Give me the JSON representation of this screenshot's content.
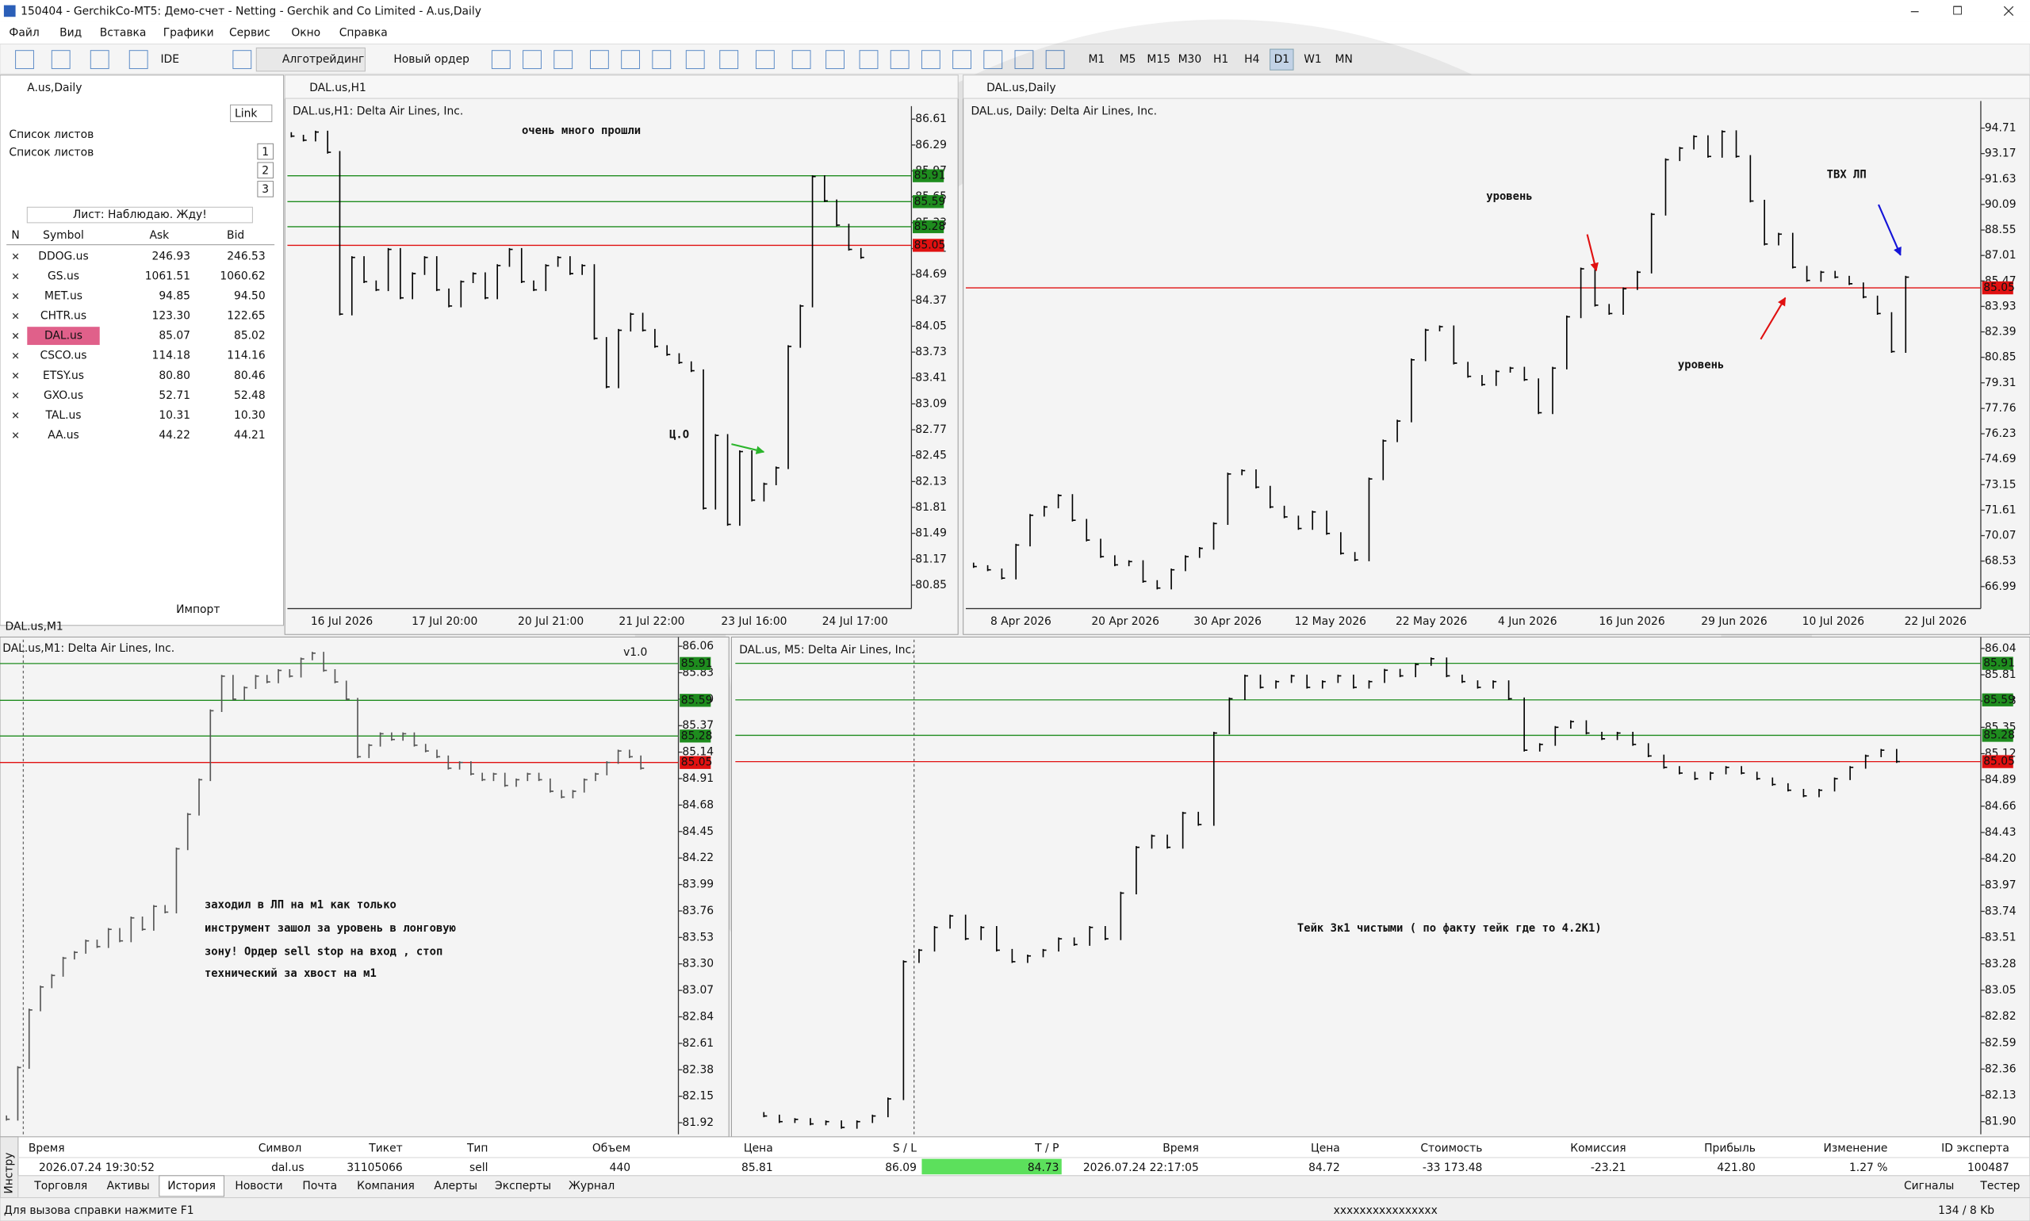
{
  "window": {
    "title": "150404 - GerchikCo-MT5: Демо-счет - Netting - Gerchik and Co Limited - A.us,Daily",
    "menu": [
      "Файл",
      "Вид",
      "Вставка",
      "Графики",
      "Сервис",
      "Окно",
      "Справка"
    ]
  },
  "toolbar": {
    "items": [
      "IDE",
      "Алготрейдинг",
      "Новый ордер"
    ],
    "timeframes": [
      "M1",
      "M5",
      "M15",
      "M30",
      "H1",
      "H4",
      "D1",
      "W1",
      "MN"
    ],
    "active_timeframe": 6
  },
  "watchlist": {
    "window_title": "A.us,Daily",
    "link": "Link",
    "heading": "Список листов",
    "subheading": "Список листов",
    "tabs": [
      "1",
      "2",
      "3"
    ],
    "list_name": "Лист: Наблюдаю. Жду!",
    "columns": [
      "N",
      "Symbol",
      "Ask",
      "Bid"
    ],
    "selected": 4,
    "import": "Импорт",
    "rows": [
      {
        "symbol": "DDOG.us",
        "ask": "246.93",
        "bid": "246.53",
        "stale": false
      },
      {
        "symbol": "GS.us",
        "ask": "1061.51",
        "bid": "1060.62",
        "stale": true
      },
      {
        "symbol": "MET.us",
        "ask": "94.85",
        "bid": "94.50",
        "stale": false
      },
      {
        "symbol": "CHTR.us",
        "ask": "123.30",
        "bid": "122.65",
        "stale": true
      },
      {
        "symbol": "DAL.us",
        "ask": "85.07",
        "bid": "85.02",
        "stale": false
      },
      {
        "symbol": "CSCO.us",
        "ask": "114.18",
        "bid": "114.16",
        "stale": true
      },
      {
        "symbol": "ETSY.us",
        "ask": "80.80",
        "bid": "80.46",
        "stale": false
      },
      {
        "symbol": "GXO.us",
        "ask": "52.71",
        "bid": "52.48",
        "stale": true
      },
      {
        "symbol": "TAL.us",
        "ask": "10.31",
        "bid": "10.30",
        "stale": false
      },
      {
        "symbol": "AA.us",
        "ask": "44.22",
        "bid": "44.21",
        "stale": true
      }
    ]
  },
  "chart_data": [
    {
      "type": "ohlc_close",
      "window_title": "DAL.us,H1",
      "header": "DAL.us,H1:  Delta Air Lines, Inc.",
      "color": "#000000",
      "ylim": [
        80.56,
        86.77
      ],
      "yticks": [
        86.61,
        86.29,
        85.97,
        85.65,
        85.33,
        85.01,
        84.69,
        84.37,
        84.05,
        83.73,
        83.41,
        83.09,
        82.77,
        82.45,
        82.13,
        81.81,
        81.49,
        81.17,
        80.85
      ],
      "x_labels": [
        "16 Jul 2026",
        "17 Jul 20:00",
        "20 Jul 21:00",
        "21 Jul 22:00",
        "23 Jul 16:00",
        "24 Jul 17:00"
      ],
      "levels": [
        {
          "value": 85.91,
          "color": "#1e8c1e"
        },
        {
          "value": 85.59,
          "color": "#1e8c1e"
        },
        {
          "value": 85.28,
          "color": "#1e8c1e"
        },
        {
          "value": 85.05,
          "color": "#e01010"
        }
      ],
      "annotations": [
        {
          "text": "очень много прошли",
          "color": "#000000"
        },
        {
          "text": "Ц.О",
          "color": "#1414d8"
        }
      ],
      "values": [
        86.4,
        86.35,
        86.45,
        86.2,
        84.2,
        84.9,
        84.6,
        84.5,
        85.0,
        84.4,
        84.7,
        84.9,
        84.5,
        84.3,
        84.6,
        84.7,
        84.4,
        84.8,
        85.0,
        84.6,
        84.5,
        84.8,
        84.9,
        84.7,
        84.8,
        83.9,
        83.3,
        84.0,
        84.2,
        84.0,
        83.8,
        83.7,
        83.6,
        83.5,
        81.8,
        82.7,
        81.6,
        82.5,
        81.9,
        82.1,
        82.3,
        83.8,
        84.3,
        85.9,
        85.6,
        85.3,
        85.0,
        84.9
      ]
    },
    {
      "type": "ohlc_close",
      "window_title": "DAL.us,Daily",
      "header": "DAL.us, Daily:  Delta Air Lines, Inc.",
      "color": "#000000",
      "ylim": [
        65.66,
        96.35
      ],
      "yticks": [
        94.71,
        93.17,
        91.63,
        90.09,
        88.55,
        87.01,
        85.47,
        83.93,
        82.39,
        80.85,
        79.31,
        77.76,
        76.23,
        74.69,
        73.15,
        71.61,
        70.07,
        68.53,
        66.99
      ],
      "x_labels": [
        "8 Apr 2026",
        "20 Apr 2026",
        "30 Apr 2026",
        "12 May 2026",
        "22 May 2026",
        "4 Jun 2026",
        "16 Jun 2026",
        "29 Jun 2026",
        "10 Jul 2026",
        "22 Jul 2026"
      ],
      "levels": [
        {
          "value": 85.05,
          "color": "#e01010"
        }
      ],
      "annotations": [
        {
          "text": "уровень",
          "color": "#000000"
        },
        {
          "text": "уровень",
          "color": "#000000"
        },
        {
          "text": "ТВХ ЛП",
          "color": "#000000"
        }
      ],
      "values": [
        68.2,
        68.0,
        67.5,
        69.5,
        71.3,
        71.8,
        72.5,
        71.0,
        69.8,
        68.8,
        68.3,
        68.5,
        67.3,
        66.9,
        68.0,
        68.8,
        69.3,
        70.8,
        73.8,
        74.0,
        73.0,
        71.8,
        71.2,
        70.5,
        71.5,
        70.2,
        69.0,
        68.6,
        73.5,
        75.8,
        77.0,
        80.7,
        82.5,
        82.7,
        80.5,
        79.7,
        79.2,
        80.0,
        80.2,
        79.5,
        77.5,
        80.2,
        83.3,
        86.2,
        84.0,
        83.5,
        85.0,
        86.0,
        89.5,
        92.8,
        93.5,
        94.2,
        93.0,
        94.5,
        93.0,
        90.3,
        87.7,
        88.3,
        86.3,
        85.5,
        86.0,
        85.7,
        85.3,
        84.5,
        83.5,
        81.2,
        85.7
      ]
    },
    {
      "type": "ohlc_close",
      "window_title": "DAL.us,M1",
      "header": "DAL.us,M1:  Delta Air Lines, Inc.",
      "badge": "v1.0",
      "color": "#555555",
      "ylim": [
        81.82,
        86.14
      ],
      "yticks": [
        86.06,
        85.83,
        {
          "value": 85.6,
          "label": "85.60"
        },
        85.37,
        85.14,
        84.91,
        84.68,
        84.45,
        84.22,
        83.99,
        83.76,
        83.53,
        {
          "value": 83.3,
          "label": "83.30"
        },
        83.07,
        82.84,
        82.61,
        82.38,
        82.15,
        81.92
      ],
      "levels": [
        {
          "value": 85.91,
          "color": "#1e8c1e"
        },
        {
          "value": 85.59,
          "color": "#1e8c1e"
        },
        {
          "value": 85.28,
          "color": "#1e8c1e"
        },
        {
          "value": 85.05,
          "color": "#e01010"
        }
      ],
      "annotations": [
        {
          "text": "заходил в ЛП на м1 как только",
          "color": "#1414d8"
        },
        {
          "text": "инструмент зашол за уровень в лонговую",
          "color": "#1414d8"
        },
        {
          "text": "зону! Ордер sell stop на вход , стоп",
          "color": "#1414d8"
        },
        {
          "text": "технический за хвост на м1",
          "color": "#1414d8"
        }
      ],
      "values": [
        81.95,
        82.4,
        82.9,
        83.1,
        83.2,
        83.35,
        83.4,
        83.5,
        83.45,
        83.6,
        83.5,
        83.7,
        83.6,
        83.8,
        83.75,
        84.3,
        84.6,
        84.9,
        85.5,
        85.8,
        85.6,
        85.7,
        85.8,
        85.75,
        85.85,
        85.8,
        85.95,
        86.0,
        85.85,
        85.75,
        85.6,
        85.1,
        85.2,
        85.3,
        85.25,
        85.3,
        85.2,
        85.15,
        85.1,
        85.0,
        85.05,
        84.95,
        84.9,
        84.95,
        84.85,
        84.9,
        84.95,
        84.9,
        84.8,
        84.75,
        84.8,
        84.9,
        84.95,
        85.05,
        85.15,
        85.1,
        85.0
      ]
    },
    {
      "type": "ohlc_close",
      "header": "DAL.us, M5:  Delta Air Lines, Inc.",
      "color": "#000000",
      "ylim": [
        81.79,
        86.14
      ],
      "yticks": [
        86.04,
        85.81,
        85.58,
        85.35,
        85.12,
        84.89,
        84.66,
        84.43,
        {
          "value": 84.2,
          "label": "84.20"
        },
        83.97,
        83.74,
        83.51,
        83.28,
        83.05,
        82.82,
        82.59,
        82.36,
        82.13,
        {
          "value": 81.9,
          "label": "81.90"
        }
      ],
      "levels": [
        {
          "value": 85.91,
          "color": "#1e8c1e"
        },
        {
          "value": 85.59,
          "color": "#1e8c1e"
        },
        {
          "value": 85.28,
          "color": "#1e8c1e"
        },
        {
          "value": 85.05,
          "color": "#e01010"
        }
      ],
      "annotations": [
        {
          "text": "Тейк 3к1 чистыми ( по факту тейк где то 4.2К1)",
          "color": "#1414d8"
        }
      ],
      "values": [
        81.95,
        81.9,
        81.92,
        81.88,
        81.9,
        81.85,
        81.9,
        81.95,
        82.1,
        83.3,
        83.4,
        83.6,
        83.7,
        83.5,
        83.6,
        83.4,
        83.3,
        83.35,
        83.4,
        83.5,
        83.45,
        83.6,
        83.5,
        83.9,
        84.3,
        84.4,
        84.3,
        84.6,
        84.5,
        85.3,
        85.6,
        85.8,
        85.7,
        85.75,
        85.8,
        85.7,
        85.75,
        85.8,
        85.7,
        85.75,
        85.85,
        85.8,
        85.9,
        85.95,
        85.8,
        85.75,
        85.7,
        85.75,
        85.6,
        85.15,
        85.2,
        85.35,
        85.4,
        85.3,
        85.25,
        85.3,
        85.2,
        85.1,
        85.0,
        84.95,
        84.9,
        84.95,
        85.0,
        84.95,
        84.9,
        84.85,
        84.8,
        84.75,
        84.8,
        84.9,
        85.0,
        85.1,
        85.15,
        85.05
      ]
    }
  ],
  "toolbox": {
    "side_label": "Инстру",
    "columns": [
      "Время",
      "Символ",
      "Тикет",
      "Тип",
      "Объем",
      "Цена",
      "S / L",
      "T / P",
      "Время",
      "Цена",
      "Стоимость",
      "Комиссия",
      "Прибыль",
      "Изменение",
      "ID эксперта"
    ],
    "row": [
      "2026.07.24 19:30:52",
      "dal.us",
      "31105066",
      "sell",
      "440",
      "85.81",
      "86.09",
      "84.73",
      "2026.07.24 22:17:05",
      "84.72",
      "-33 173.48",
      "-23.21",
      "421.80",
      "1.27 %",
      "100487"
    ],
    "tabs": [
      "Торговля",
      "Активы",
      "История",
      "Новости",
      "Почта",
      "Компания",
      "Алерты",
      "Эксперты",
      "Журнал"
    ],
    "active_tab": 2,
    "right_tabs": [
      "Сигналы",
      "Тестер"
    ]
  },
  "status": {
    "help": "Для вызова справки нажмите F1",
    "profile": "xxxxxxxxxxxxxxxx",
    "traffic": "134 / 8 Kb"
  }
}
